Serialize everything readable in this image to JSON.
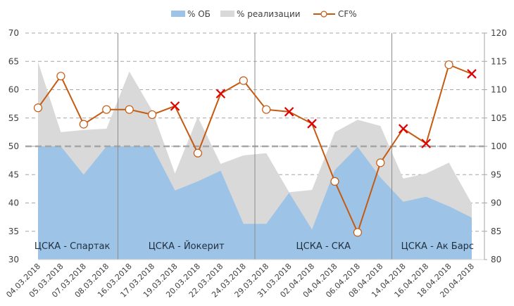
{
  "chart_data": {
    "type": "area",
    "title": "",
    "legend": {
      "position": "top-center",
      "entries": [
        {
          "name": "% ОБ",
          "kind": "area",
          "color": "#9dc3e6"
        },
        {
          "name": "% реализации",
          "kind": "area",
          "color": "#d9d9d9"
        },
        {
          "name": "CF%",
          "kind": "line-marker",
          "color": "#c55a11"
        }
      ]
    },
    "categories": [
      "04.03.2018",
      "05.03.2018",
      "07.03.2018",
      "08.03.2018",
      "16.03.2018",
      "17.03.2018",
      "19.03.2018",
      "20.03.2018",
      "22.03.2018",
      "24.03.2018",
      "29.03.2018",
      "31.03.2018",
      "02.04.2018",
      "04.04.2018",
      "06.04.2018",
      "08.04.2018",
      "14.04.2018",
      "16.04.2018",
      "18.04.2018",
      "20.04.2018"
    ],
    "y_left": {
      "min": 30,
      "max": 70,
      "step": 5,
      "ticks": [
        "30",
        "35",
        "40",
        "45",
        "50",
        "55",
        "60",
        "65",
        "70"
      ]
    },
    "y_right": {
      "min": 80,
      "max": 120,
      "step": 5,
      "ticks": [
        "80",
        "85",
        "90",
        "95",
        "100",
        "105",
        "110",
        "115",
        "120"
      ]
    },
    "reference_line": {
      "axis": "left",
      "value": 50
    },
    "series": [
      {
        "name": "% реализации",
        "axis": "left",
        "type": "area",
        "color": "#d9d9d9",
        "values": [
          64.9,
          52.5,
          52.9,
          53.1,
          63.2,
          56.3,
          45.2,
          55.2,
          46.9,
          48.4,
          48.8,
          41.9,
          42.3,
          52.5,
          54.7,
          53.6,
          44.3,
          45.2,
          47.1,
          39.9
        ]
      },
      {
        "name": "% ОБ",
        "axis": "left",
        "type": "area",
        "color": "#9dc3e6",
        "values": [
          50.0,
          50.0,
          45.0,
          50.0,
          50.0,
          50.0,
          42.2,
          43.8,
          45.7,
          36.3,
          36.3,
          41.8,
          35.3,
          45.8,
          49.9,
          44.5,
          40.2,
          41.1,
          39.4,
          37.4
        ]
      },
      {
        "name": "CF%",
        "axis": "right",
        "type": "line",
        "color": "#c55a11",
        "values": [
          106.8,
          112.4,
          103.9,
          106.5,
          106.5,
          105.6,
          107.1,
          98.8,
          109.3,
          111.6,
          106.5,
          106.1,
          104.0,
          93.8,
          84.8,
          97.1,
          103.1,
          100.5,
          114.4,
          112.8
        ],
        "markers": [
          "o",
          "o",
          "o",
          "o",
          "o",
          "o",
          "x",
          "o",
          "x",
          "o",
          "o",
          "x",
          "x",
          "o",
          "o",
          "o",
          "x",
          "x",
          "o",
          "x"
        ]
      }
    ],
    "marker_colors": {
      "o_stroke": "#c55a11",
      "o_fill": "#ffffff",
      "x": "#e00000"
    },
    "separators_after_index": [
      3,
      9,
      15
    ],
    "group_labels": [
      {
        "text": "ЦСКА - Спартак",
        "from": 0,
        "to": 3
      },
      {
        "text": "ЦСКА - Йокерит",
        "from": 4,
        "to": 9
      },
      {
        "text": "ЦСКА - СКА",
        "from": 10,
        "to": 15
      },
      {
        "text": "ЦСКА - Ак Барс",
        "from": 16,
        "to": 19
      }
    ],
    "grid": "horizontal-dashed"
  }
}
